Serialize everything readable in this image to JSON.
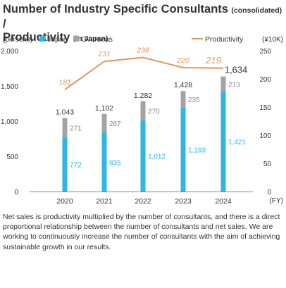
{
  "title": {
    "line1": "Number of Industry Specific Consultants",
    "line1_suffix": "(consolidated)",
    "slash": "/",
    "line2": "Productivity",
    "line2_suffix": "(in Japan)"
  },
  "colors": {
    "japan": "#2fb5e6",
    "overseas": "#a3a3a3",
    "productivity": "#e2965a",
    "axis": "#888888",
    "text": "#333333"
  },
  "chart_data": {
    "type": "bar",
    "stacked": true,
    "categories": [
      "2020",
      "2021",
      "2022",
      "2023",
      "2024"
    ],
    "series": [
      {
        "name": "Japan",
        "values": [
          772,
          835,
          1012,
          1193,
          1421
        ]
      },
      {
        "name": "Overseas",
        "values": [
          271,
          267,
          270,
          235,
          213
        ]
      }
    ],
    "totals": [
      1043,
      1102,
      1282,
      1428,
      1634
    ],
    "line_series": {
      "name": "Productivity",
      "values": [
        181,
        231,
        238,
        220,
        219
      ],
      "axis": "right"
    },
    "ylabel_left": "(persons)",
    "ylabel_right": "(¥10K)",
    "xlabel": "(FY)",
    "ylim_left": [
      0,
      2000
    ],
    "ylim_right": [
      0,
      250
    ],
    "yticks_left": [
      "0",
      "500",
      "1,000",
      "1,500",
      "2,000"
    ],
    "yticks_right": [
      "0",
      "50",
      "100",
      "150",
      "200",
      "250"
    ],
    "value_labels": {
      "japan": [
        "772",
        "835",
        "1,012",
        "1,193",
        "1,421"
      ],
      "overseas": [
        "271",
        "267",
        "270",
        "235",
        "213"
      ],
      "totals": [
        "1,043",
        "1,102",
        "1,282",
        "1,428",
        "1,634"
      ],
      "productivity": [
        "181",
        "231",
        "238",
        "220",
        "219"
      ]
    },
    "legend": {
      "position": "top",
      "japan": "Japan",
      "overseas": "Overseas",
      "productivity": "Productivity"
    }
  },
  "note": "Net sales is productivity multiplied by the number of consultants, and there is a direct proportional relationship between the number of consultants and net sales. We are working to continuously increase the number of consultants with the aim of achieving sustainable growth in our results."
}
